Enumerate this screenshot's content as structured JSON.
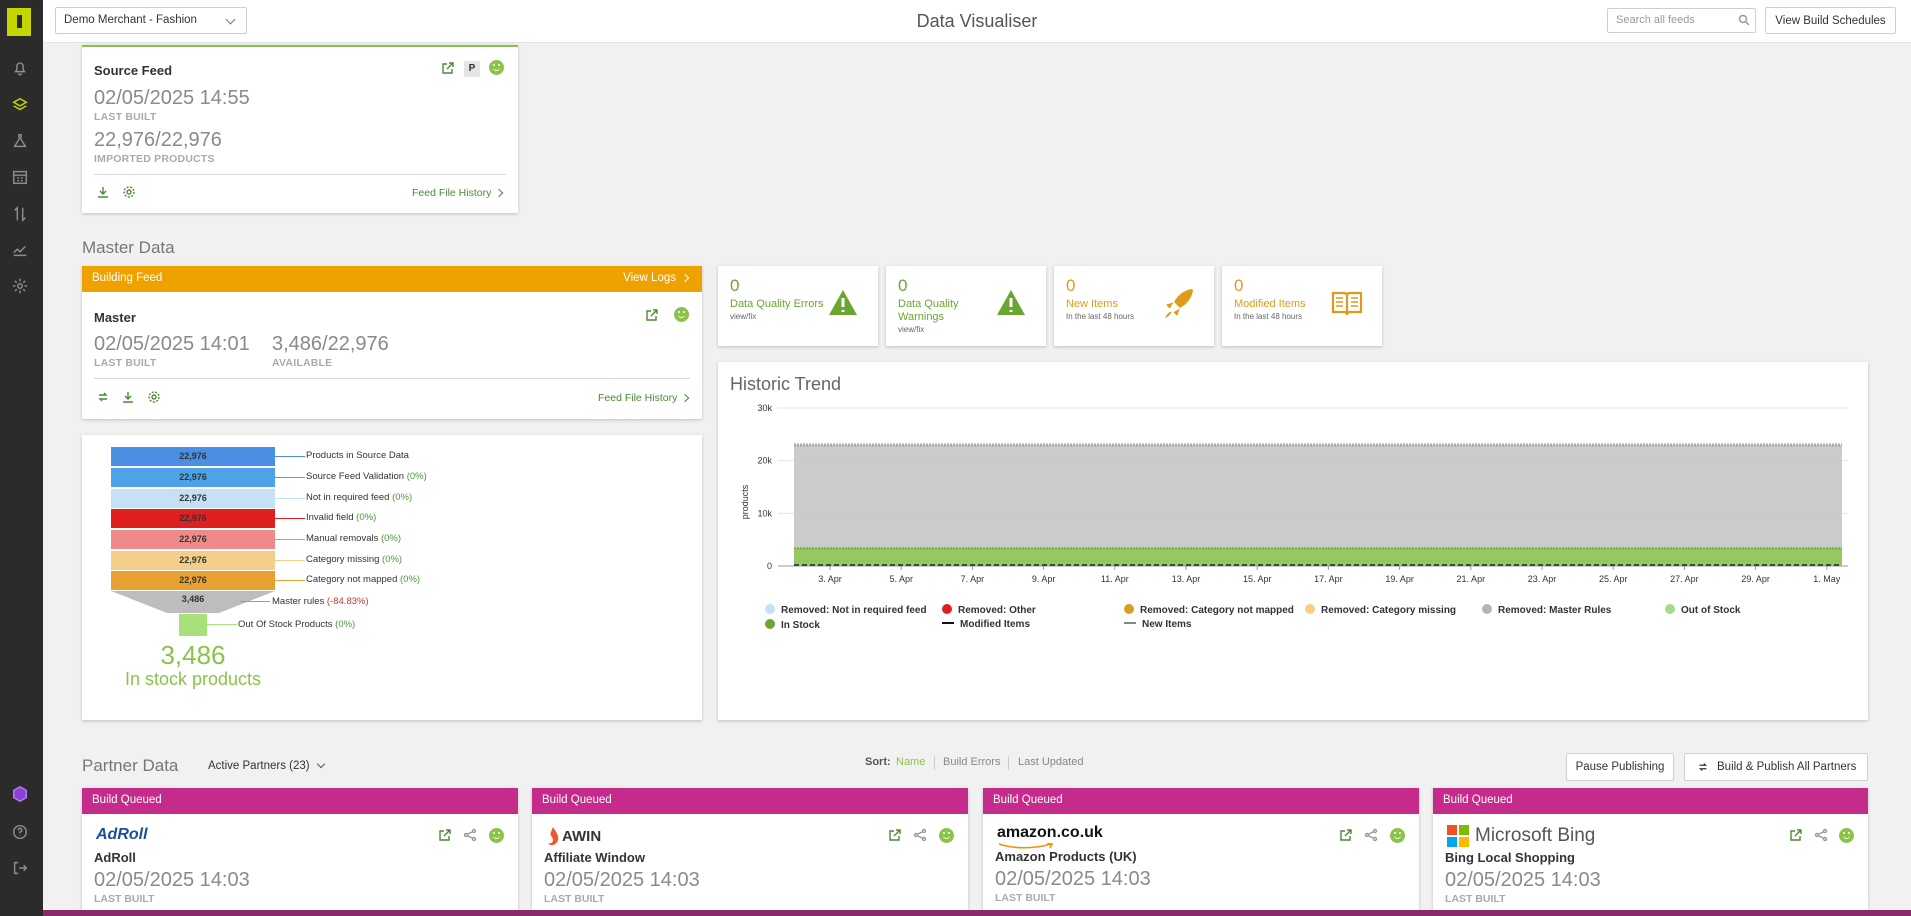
{
  "header": {
    "merchant_select": "Demo Merchant - Fashion",
    "title": "Data Visualiser",
    "search_placeholder": "Search all feeds",
    "view_schedules_label": "View Build Schedules"
  },
  "sidebar": {
    "icons": [
      "bell-icon",
      "layers-icon",
      "flask-icon",
      "calendar-icon",
      "transfer-icon",
      "chart-icon",
      "gear-icon"
    ],
    "bottom_icons": [
      "cube-icon",
      "help-icon",
      "logout-icon"
    ]
  },
  "source_feed": {
    "title": "Source Feed",
    "badge": "P",
    "last_built": "02/05/2025 14:55",
    "last_built_label": "LAST BUILT",
    "imported": "22,976/22,976",
    "imported_label": "IMPORTED PRODUCTS",
    "history_link": "Feed File History"
  },
  "master_data": {
    "section_title": "Master Data",
    "status_banner": "Building Feed",
    "view_logs": "View Logs",
    "title": "Master",
    "last_built": "02/05/2025 14:01",
    "last_built_label": "LAST BUILT",
    "available": "3,486/22,976",
    "available_label": "AVAILABLE",
    "history_link": "Feed File History",
    "banner_color": "#eea200"
  },
  "stats": [
    {
      "value": "0",
      "label": "Data Quality Errors",
      "sub": "view/fix",
      "color": "#6aa630",
      "icon": "warning-icon"
    },
    {
      "value": "0",
      "label": "Data Quality Warnings",
      "sub": "view/fix",
      "color": "#6aa630",
      "icon": "warning-icon"
    },
    {
      "value": "0",
      "label": "New Items",
      "sub": "In the last 48 hours",
      "color": "#e09a1a",
      "icon": "rocket-icon"
    },
    {
      "value": "0",
      "label": "Modified Items",
      "sub": "In the last 48 hours",
      "color": "#e09a1a",
      "icon": "book-icon"
    }
  ],
  "funnel": {
    "rows": [
      {
        "value": "22,976",
        "label": "Products in Source Data",
        "pct": "",
        "color": "#4a90e2"
      },
      {
        "value": "22,976",
        "label": "Source Feed Validation",
        "pct": "(0%)",
        "color": "#4ea3e8"
      },
      {
        "value": "22,976",
        "label": "Not in required feed",
        "pct": "(0%)",
        "color": "#c6e1f5"
      },
      {
        "value": "22,976",
        "label": "Invalid field",
        "pct": "(0%)",
        "color": "#e02020"
      },
      {
        "value": "22,976",
        "label": "Manual removals",
        "pct": "(0%)",
        "color": "#ef8a8a"
      },
      {
        "value": "22,976",
        "label": "Category missing",
        "pct": "(0%)",
        "color": "#f5cf8a"
      },
      {
        "value": "22,976",
        "label": "Category not mapped",
        "pct": "(0%)",
        "color": "#e8a030"
      }
    ],
    "master_rules": {
      "value": "3,486",
      "label": "Master rules",
      "pct": "(-84.83%)"
    },
    "out_of_stock": {
      "label": "Out Of Stock Products",
      "pct": "(0%)"
    },
    "in_stock_count": "3,486",
    "in_stock_label": "In stock products"
  },
  "chart_data": {
    "type": "area",
    "title": "Historic Trend",
    "xlabel": "",
    "ylabel": "products",
    "ylim": [
      0,
      30000
    ],
    "yticks": [
      "0",
      "10k",
      "20k",
      "30k"
    ],
    "categories": [
      "3. Apr",
      "5. Apr",
      "7. Apr",
      "9. Apr",
      "11. Apr",
      "13. Apr",
      "15. Apr",
      "17. Apr",
      "19. Apr",
      "21. Apr",
      "23. Apr",
      "25. Apr",
      "27. Apr",
      "29. Apr",
      "1. May"
    ],
    "series": [
      {
        "name": "In Stock",
        "values": [
          3486,
          3486,
          3486,
          3486,
          3486,
          3486,
          3486,
          3486,
          3486,
          3486,
          3486,
          3486,
          3486,
          3486,
          3486
        ],
        "color": "#8ec65a"
      },
      {
        "name": "Out of Stock",
        "values": [
          0,
          0,
          0,
          0,
          0,
          0,
          0,
          0,
          0,
          0,
          0,
          0,
          0,
          0,
          0
        ],
        "color": "#a8d98a"
      },
      {
        "name": "Removed: Master Rules",
        "values": [
          19490,
          19490,
          19490,
          19490,
          19490,
          19490,
          19490,
          19490,
          19490,
          19490,
          19490,
          19490,
          19490,
          19490,
          19490
        ],
        "color": "#c8c8c8"
      }
    ],
    "legend": [
      {
        "name": "Removed: Not in required feed",
        "color": "#c6e1f5",
        "marker": "dot"
      },
      {
        "name": "Removed: Other",
        "color": "#e02020",
        "marker": "dot"
      },
      {
        "name": "Removed: Category not mapped",
        "color": "#d4a020",
        "marker": "dot"
      },
      {
        "name": "Removed: Category missing",
        "color": "#f5cf8a",
        "marker": "dot"
      },
      {
        "name": "Removed: Master Rules",
        "color": "#b5b5b5",
        "marker": "dot"
      },
      {
        "name": "Out of Stock",
        "color": "#a8d98a",
        "marker": "dot"
      },
      {
        "name": "In Stock",
        "color": "#6aa630",
        "marker": "dot"
      },
      {
        "name": "Modified Items",
        "color": "#111111",
        "marker": "square-line"
      },
      {
        "name": "New Items",
        "color": "#888888",
        "marker": "triangle-line"
      }
    ],
    "legend_position": "bottom",
    "grid": true
  },
  "partner_data": {
    "section_title": "Partner Data",
    "filter": "Active Partners (23)",
    "sort_label": "Sort:",
    "sort_options": [
      "Name",
      "Build Errors",
      "Last Updated"
    ],
    "sort_active": "Name",
    "pause_label": "Pause Publishing",
    "build_all_label": "Build & Publish All Partners",
    "partners": [
      {
        "status": "Build Queued",
        "logo": "AdRoll",
        "name": "AdRoll",
        "date": "02/05/2025 14:03",
        "last_built_label": "LAST BUILT"
      },
      {
        "status": "Build Queued",
        "logo": "AWIN",
        "name": "Affiliate Window",
        "date": "02/05/2025 14:03",
        "last_built_label": "LAST BUILT"
      },
      {
        "status": "Build Queued",
        "logo": "amazon.co.uk",
        "name": "Amazon Products (UK)",
        "date": "02/05/2025 14:03",
        "last_built_label": "LAST BUILT"
      },
      {
        "status": "Build Queued",
        "logo": "Microsoft Bing",
        "name": "Bing Local Shopping",
        "date": "02/05/2025 14:03",
        "last_built_label": "LAST BUILT"
      }
    ],
    "banner_color": "#c42b8a"
  }
}
